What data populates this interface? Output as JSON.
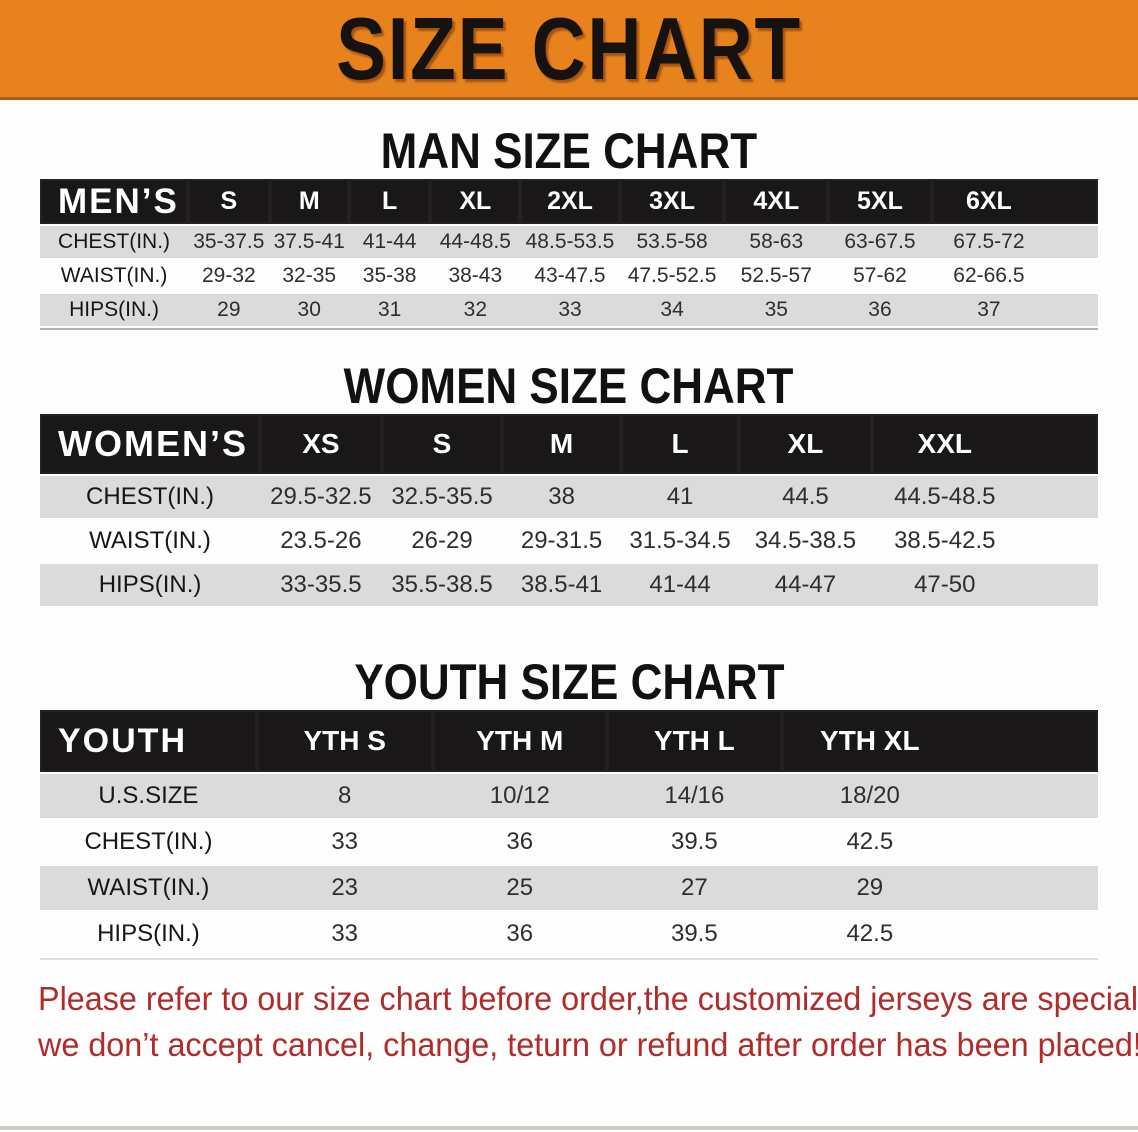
{
  "banner": {
    "title": "SIZE CHART",
    "bg_color": "#E8821C"
  },
  "sections": {
    "men": {
      "heading": "MAN SIZE CHART",
      "table": {
        "label": "MEN’S",
        "columns": [
          "S",
          "M",
          "L",
          "XL",
          "2XL",
          "3XL",
          "4XL",
          "5XL",
          "6XL"
        ],
        "rows": [
          {
            "label": "CHEST(IN.)",
            "values": [
              "35-37.5",
              "37.5-41",
              "41-44",
              "44-48.5",
              "48.5-53.5",
              "53.5-58",
              "58-63",
              "63-67.5",
              "67.5-72"
            ]
          },
          {
            "label": "WAIST(IN.)",
            "values": [
              "29-32",
              "32-35",
              "35-38",
              "38-43",
              "43-47.5",
              "47.5-52.5",
              "52.5-57",
              "57-62",
              "62-66.5"
            ]
          },
          {
            "label": "HIPS(IN.)",
            "values": [
              "29",
              "30",
              "31",
              "32",
              "33",
              "34",
              "35",
              "36",
              "37"
            ]
          }
        ]
      }
    },
    "women": {
      "heading": "WOMEN SIZE CHART",
      "table": {
        "label": "WOMEN’S",
        "columns": [
          "XS",
          "S",
          "M",
          "L",
          "XL",
          "XXL"
        ],
        "rows": [
          {
            "label": "CHEST(IN.)",
            "values": [
              "29.5-32.5",
              "32.5-35.5",
              "38",
              "41",
              "44.5",
              "44.5-48.5"
            ]
          },
          {
            "label": "WAIST(IN.)",
            "values": [
              "23.5-26",
              "26-29",
              "29-31.5",
              "31.5-34.5",
              "34.5-38.5",
              "38.5-42.5"
            ]
          },
          {
            "label": "HIPS(IN.)",
            "values": [
              "33-35.5",
              "35.5-38.5",
              "38.5-41",
              "41-44",
              "44-47",
              "47-50"
            ]
          }
        ]
      }
    },
    "youth": {
      "heading": "YOUTH SIZE CHART",
      "table": {
        "label": "YOUTH",
        "columns": [
          "YTH S",
          "YTH M",
          "YTH L",
          "YTH XL"
        ],
        "rows": [
          {
            "label": "U.S.SIZE",
            "values": [
              "8",
              "10/12",
              "14/16",
              "18/20"
            ]
          },
          {
            "label": "CHEST(IN.)",
            "values": [
              "33",
              "36",
              "39.5",
              "42.5"
            ]
          },
          {
            "label": "WAIST(IN.)",
            "values": [
              "23",
              "25",
              "27",
              "29"
            ]
          },
          {
            "label": "HIPS(IN.)",
            "values": [
              "33",
              "36",
              "39.5",
              "42.5"
            ]
          }
        ]
      }
    }
  },
  "disclaimer": {
    "line1": "Please refer to our size chart before order,the customized jerseys are special products,",
    "line2": "we don’t accept cancel, change, teturn or refund after order has been placed!",
    "text_color": "#B22B2B"
  },
  "colors": {
    "banner_orange": "#E8821C",
    "banner_edge": "#A85E17",
    "header_bar_black": "#191718",
    "row_gray": "#DBDBDB",
    "row_white": "#FEFEFE",
    "heading_black": "#111111"
  }
}
